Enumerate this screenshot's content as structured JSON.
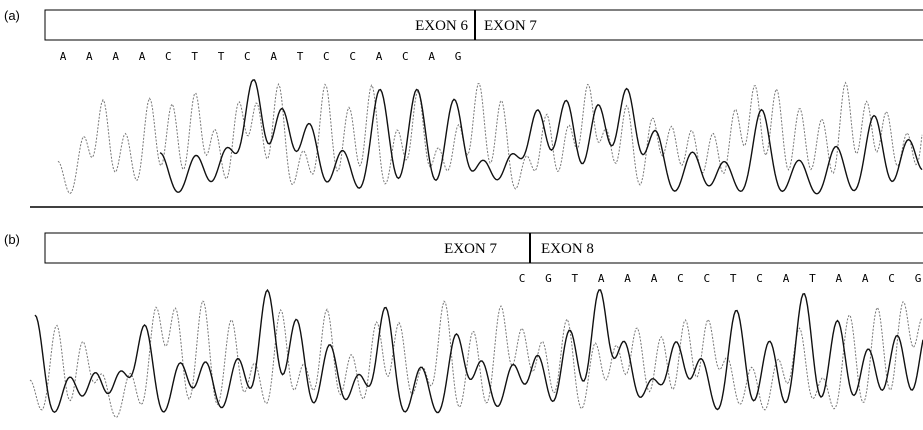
{
  "panel_a": {
    "label": "(a)",
    "exon_left": "EXON 6",
    "exon_right": "EXON 7",
    "bases": [
      "A",
      "A",
      "A",
      "A",
      "C",
      "T",
      "T",
      "C",
      "A",
      "T",
      "C",
      "C",
      "A",
      "C",
      "A",
      "G"
    ]
  },
  "panel_b": {
    "label": "(b)",
    "exon_left": "EXON 7",
    "exon_right": "EXON 8",
    "bases": [
      "C",
      "G",
      "T",
      "A",
      "A",
      "A",
      "C",
      "C",
      "T",
      "C",
      "A",
      "T",
      "A",
      "A",
      "C",
      "G"
    ]
  }
}
